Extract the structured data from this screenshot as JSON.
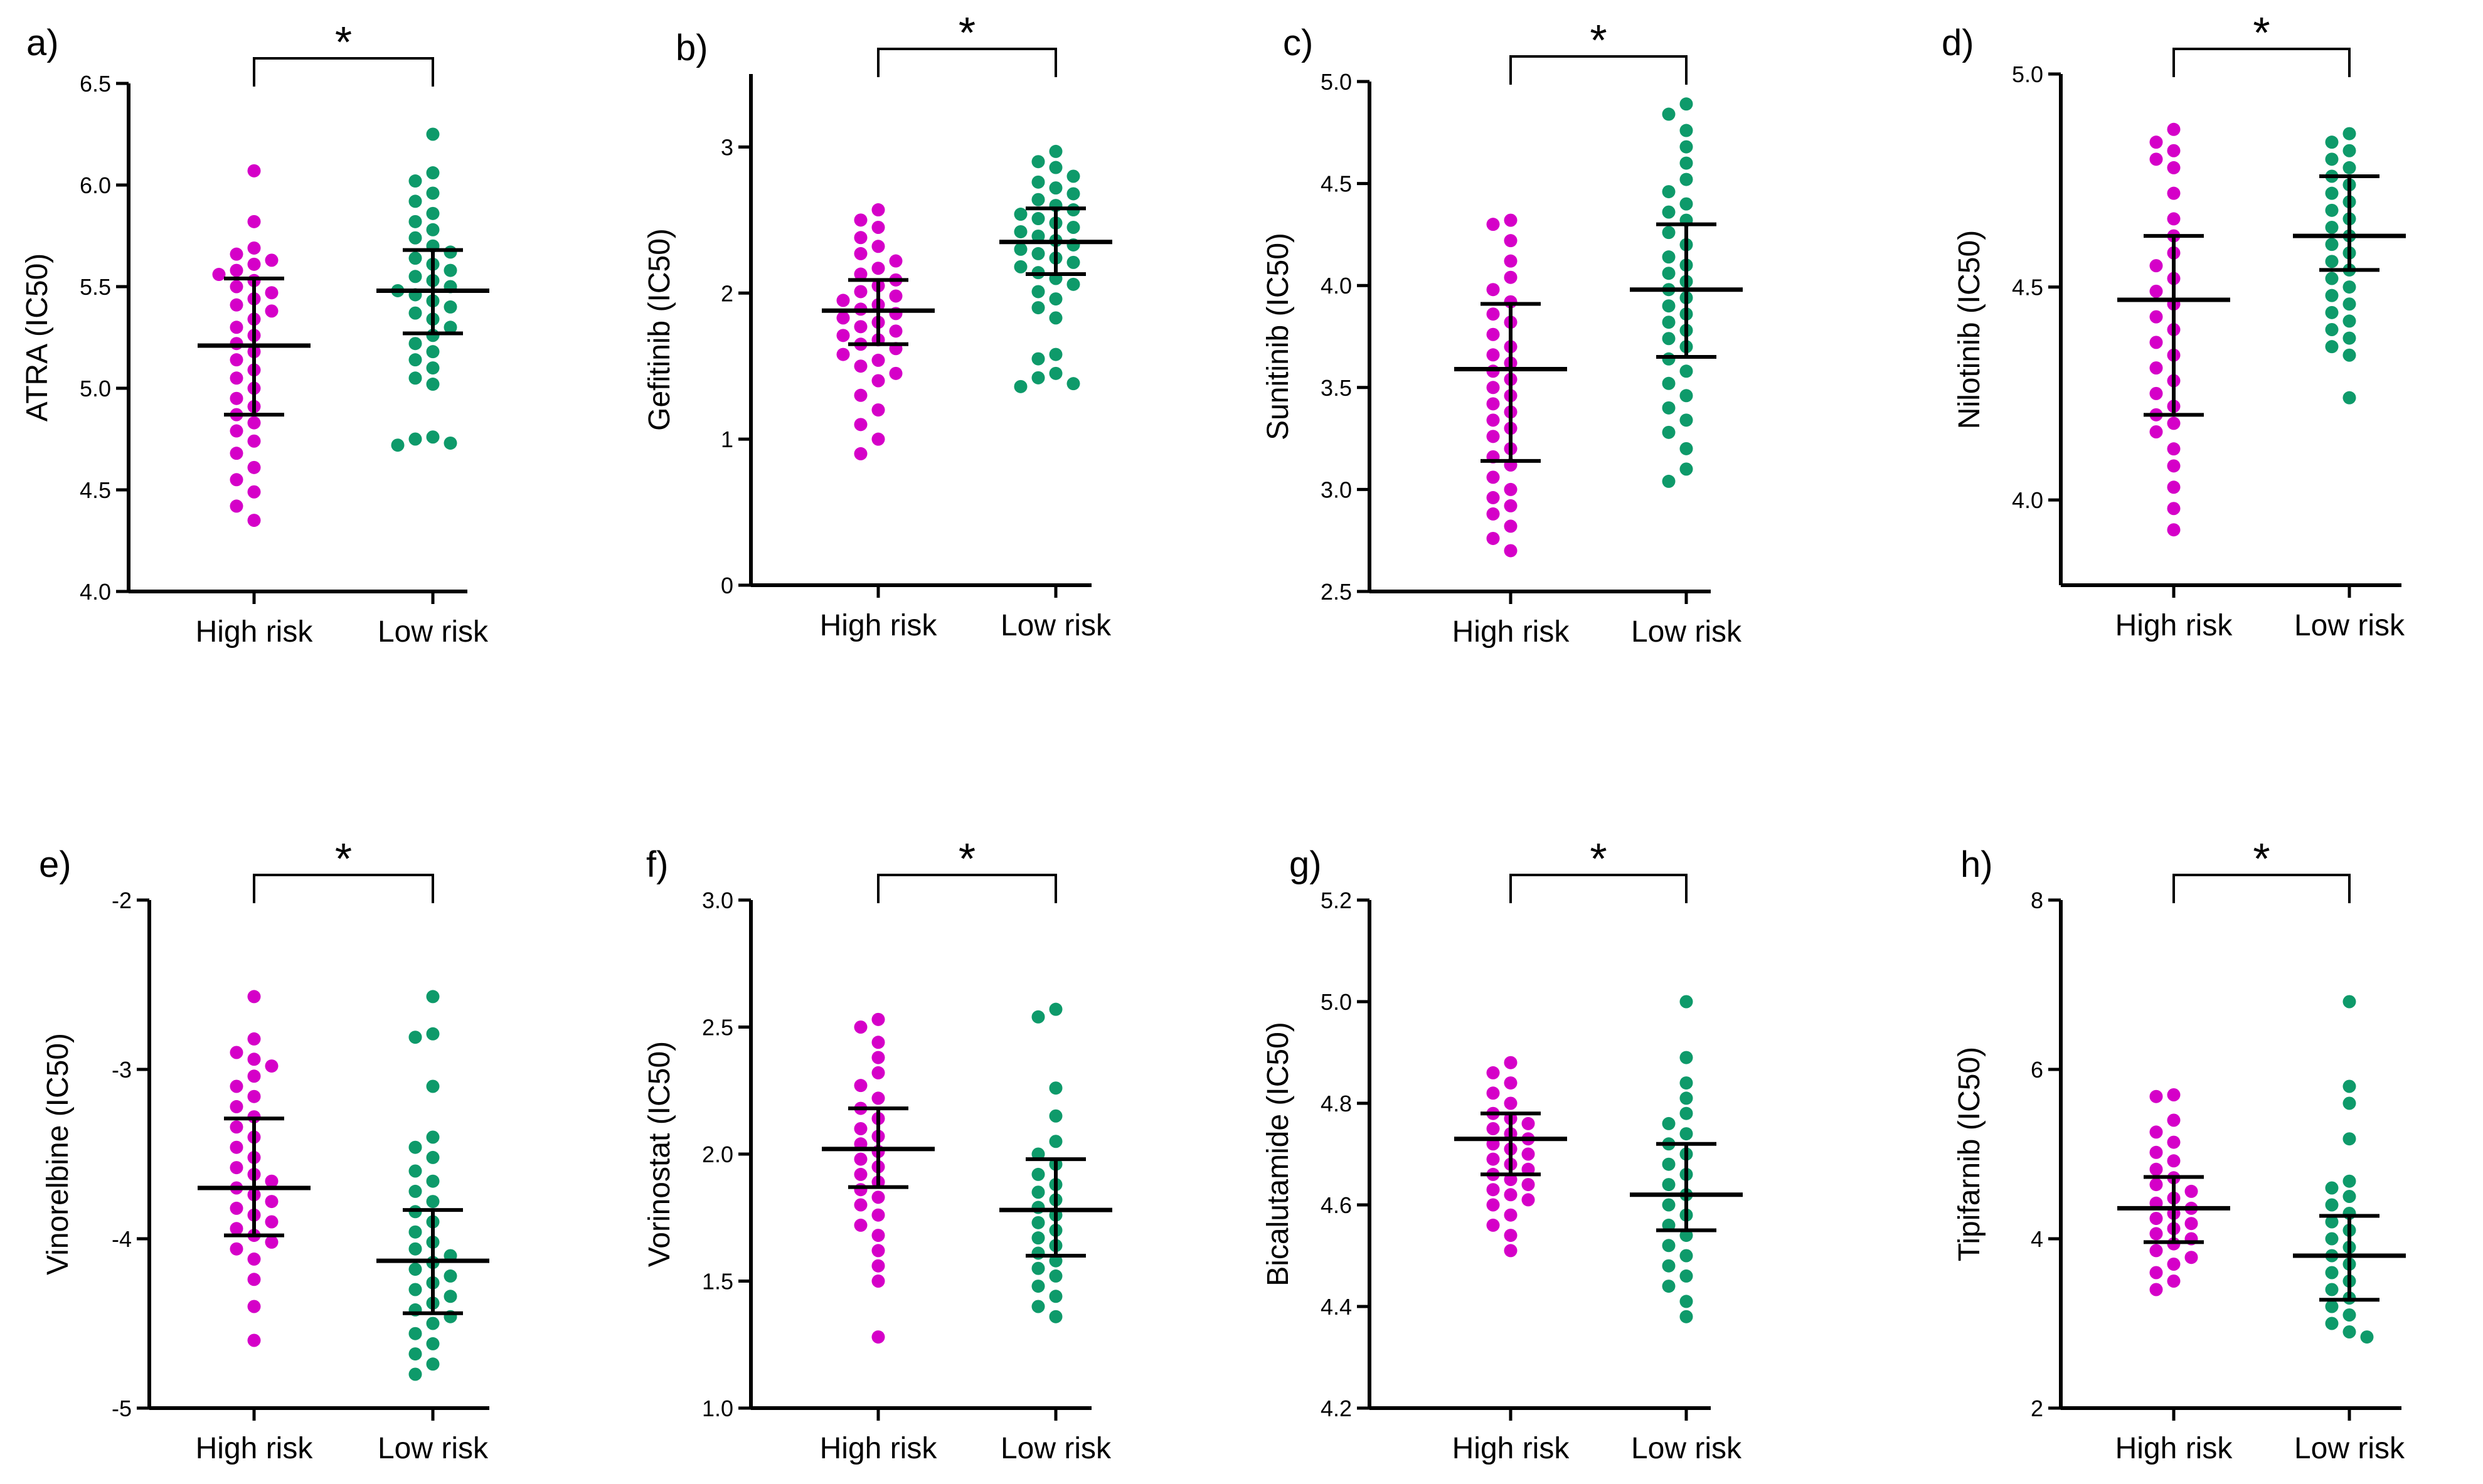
{
  "colors": {
    "high": "#d500c8",
    "low": "#0e9a6a",
    "axis": "#000000"
  },
  "chart_data": [
    {
      "type": "scatter",
      "panel": "a)",
      "ylabel": "ATRA (IC50)",
      "ylim": [
        4.0,
        6.5
      ],
      "yticks": [
        "4.0",
        "4.5",
        "5.0",
        "5.5",
        "6.0",
        "6.5"
      ],
      "categories": [
        "High risk",
        "Low risk"
      ],
      "significance": "*",
      "series": [
        {
          "name": "High risk",
          "mean": 5.21,
          "sd_low": 4.87,
          "sd_high": 5.54,
          "values": [
            6.07,
            5.82,
            5.69,
            5.66,
            5.63,
            5.61,
            5.58,
            5.56,
            5.53,
            5.5,
            5.47,
            5.44,
            5.41,
            5.38,
            5.34,
            5.3,
            5.26,
            5.22,
            5.18,
            5.14,
            5.09,
            5.05,
            5.0,
            4.95,
            4.91,
            4.87,
            4.83,
            4.79,
            4.74,
            4.68,
            4.61,
            4.55,
            4.49,
            4.42,
            4.35
          ]
        },
        {
          "name": "Low risk",
          "mean": 5.48,
          "sd_low": 5.27,
          "sd_high": 5.68,
          "values": [
            6.25,
            6.06,
            6.02,
            5.96,
            5.92,
            5.86,
            5.82,
            5.78,
            5.74,
            5.7,
            5.67,
            5.64,
            5.61,
            5.58,
            5.55,
            5.53,
            5.5,
            5.48,
            5.46,
            5.43,
            5.4,
            5.37,
            5.34,
            5.3,
            5.26,
            5.22,
            5.18,
            5.14,
            5.1,
            5.05,
            5.02,
            4.76,
            4.75,
            4.73,
            4.72
          ]
        }
      ]
    },
    {
      "type": "scatter",
      "panel": "b)",
      "ylabel": "Gefitinib  (IC50)",
      "ylim": [
        0,
        3.5
      ],
      "yticks": [
        "0",
        "1",
        "2",
        "3"
      ],
      "categories": [
        "High risk",
        "Low risk"
      ],
      "significance": "*",
      "series": [
        {
          "name": "High risk",
          "mean": 1.88,
          "sd_low": 1.65,
          "sd_high": 2.09,
          "values": [
            2.57,
            2.5,
            2.45,
            2.38,
            2.32,
            2.27,
            2.22,
            2.17,
            2.13,
            2.09,
            2.05,
            2.01,
            1.98,
            1.95,
            1.92,
            1.89,
            1.86,
            1.83,
            1.8,
            1.77,
            1.74,
            1.71,
            1.68,
            1.65,
            1.62,
            1.58,
            1.54,
            1.5,
            1.45,
            1.4,
            1.3,
            1.2,
            1.1,
            1.0,
            0.9
          ]
        },
        {
          "name": "Low risk",
          "mean": 2.35,
          "sd_low": 2.13,
          "sd_high": 2.58,
          "values": [
            2.97,
            2.9,
            2.86,
            2.8,
            2.76,
            2.72,
            2.68,
            2.64,
            2.6,
            2.57,
            2.54,
            2.51,
            2.48,
            2.45,
            2.42,
            2.39,
            2.36,
            2.33,
            2.3,
            2.27,
            2.24,
            2.21,
            2.18,
            2.14,
            2.1,
            2.06,
            2.01,
            1.96,
            1.9,
            1.83,
            1.58,
            1.55,
            1.45,
            1.42,
            1.38,
            1.36
          ]
        }
      ]
    },
    {
      "type": "scatter",
      "panel": "c)",
      "ylabel": "Sunitinib (IC50)",
      "ylim": [
        2.5,
        5.0
      ],
      "yticks": [
        "2.5",
        "3.0",
        "3.5",
        "4.0",
        "4.5",
        "5.0"
      ],
      "categories": [
        "High risk",
        "Low risk"
      ],
      "significance": "*",
      "series": [
        {
          "name": "High risk",
          "mean": 3.59,
          "sd_low": 3.14,
          "sd_high": 3.91,
          "values": [
            4.32,
            4.3,
            4.22,
            4.12,
            4.04,
            3.98,
            3.92,
            3.86,
            3.82,
            3.76,
            3.7,
            3.66,
            3.62,
            3.58,
            3.54,
            3.5,
            3.46,
            3.42,
            3.38,
            3.34,
            3.3,
            3.26,
            3.2,
            3.16,
            3.12,
            3.06,
            3.0,
            2.96,
            2.92,
            2.88,
            2.82,
            2.76,
            2.7
          ]
        },
        {
          "name": "Low risk",
          "mean": 3.98,
          "sd_low": 3.65,
          "sd_high": 4.3,
          "values": [
            4.89,
            4.84,
            4.76,
            4.68,
            4.6,
            4.52,
            4.46,
            4.4,
            4.36,
            4.32,
            4.26,
            4.2,
            4.14,
            4.1,
            4.06,
            4.02,
            3.98,
            3.94,
            3.9,
            3.86,
            3.82,
            3.78,
            3.74,
            3.7,
            3.64,
            3.58,
            3.52,
            3.46,
            3.4,
            3.34,
            3.28,
            3.2,
            3.1,
            3.04
          ]
        }
      ]
    },
    {
      "type": "scatter",
      "panel": "d)",
      "ylabel": "Nilotinib (IC50)",
      "ylim": [
        3.8,
        5.0
      ],
      "yticks": [
        "4.0",
        "4.5",
        "5.0"
      ],
      "categories": [
        "High risk",
        "Low risk"
      ],
      "significance": "*",
      "series": [
        {
          "name": "High risk",
          "mean": 4.47,
          "sd_low": 4.2,
          "sd_high": 4.62,
          "values": [
            4.87,
            4.84,
            4.82,
            4.8,
            4.78,
            4.72,
            4.66,
            4.62,
            4.58,
            4.55,
            4.52,
            4.49,
            4.46,
            4.43,
            4.4,
            4.37,
            4.34,
            4.31,
            4.28,
            4.25,
            4.22,
            4.2,
            4.18,
            4.16,
            4.12,
            4.08,
            4.03,
            3.98,
            3.93
          ]
        },
        {
          "name": "Low risk",
          "mean": 4.62,
          "sd_low": 4.54,
          "sd_high": 4.76,
          "values": [
            4.86,
            4.84,
            4.82,
            4.8,
            4.78,
            4.76,
            4.74,
            4.72,
            4.7,
            4.68,
            4.66,
            4.64,
            4.62,
            4.6,
            4.58,
            4.56,
            4.54,
            4.52,
            4.5,
            4.48,
            4.46,
            4.44,
            4.42,
            4.4,
            4.38,
            4.36,
            4.34,
            4.24
          ]
        }
      ]
    },
    {
      "type": "scatter",
      "panel": "e)",
      "ylabel": "Vinorelbine (IC50)",
      "ylim": [
        -5,
        -2
      ],
      "yticks": [
        "-5",
        "-4",
        "-3",
        "-2"
      ],
      "categories": [
        "High risk",
        "Low risk"
      ],
      "significance": "*",
      "series": [
        {
          "name": "High risk",
          "mean": -3.7,
          "sd_low": -3.98,
          "sd_high": -3.29,
          "values": [
            -2.57,
            -2.82,
            -2.9,
            -2.94,
            -2.98,
            -3.04,
            -3.1,
            -3.16,
            -3.22,
            -3.28,
            -3.34,
            -3.4,
            -3.46,
            -3.52,
            -3.58,
            -3.62,
            -3.66,
            -3.7,
            -3.74,
            -3.78,
            -3.82,
            -3.86,
            -3.9,
            -3.94,
            -3.98,
            -4.02,
            -4.06,
            -4.12,
            -4.24,
            -4.4,
            -4.6
          ]
        },
        {
          "name": "Low risk",
          "mean": -4.13,
          "sd_low": -4.44,
          "sd_high": -3.83,
          "values": [
            -2.57,
            -2.79,
            -2.81,
            -3.1,
            -3.4,
            -3.46,
            -3.52,
            -3.6,
            -3.66,
            -3.72,
            -3.78,
            -3.84,
            -3.9,
            -3.96,
            -4.02,
            -4.06,
            -4.1,
            -4.14,
            -4.18,
            -4.22,
            -4.26,
            -4.3,
            -4.34,
            -4.38,
            -4.42,
            -4.46,
            -4.5,
            -4.56,
            -4.62,
            -4.68,
            -4.74,
            -4.8
          ]
        }
      ]
    },
    {
      "type": "scatter",
      "panel": "f)",
      "ylabel": "Vorinostat (IC50)",
      "ylim": [
        1.0,
        3.0
      ],
      "yticks": [
        "1.0",
        "1.5",
        "2.0",
        "2.5",
        "3.0"
      ],
      "categories": [
        "High risk",
        "Low risk"
      ],
      "significance": "*",
      "series": [
        {
          "name": "High risk",
          "mean": 2.02,
          "sd_low": 1.87,
          "sd_high": 2.18,
          "values": [
            2.53,
            2.5,
            2.44,
            2.38,
            2.32,
            2.27,
            2.22,
            2.18,
            2.14,
            2.1,
            2.07,
            2.04,
            2.01,
            1.98,
            1.95,
            1.92,
            1.89,
            1.86,
            1.83,
            1.8,
            1.76,
            1.72,
            1.68,
            1.62,
            1.56,
            1.5,
            1.28
          ]
        },
        {
          "name": "Low risk",
          "mean": 1.78,
          "sd_low": 1.6,
          "sd_high": 1.98,
          "values": [
            2.57,
            2.54,
            2.26,
            2.15,
            2.05,
            2.0,
            1.96,
            1.92,
            1.88,
            1.85,
            1.82,
            1.79,
            1.76,
            1.73,
            1.7,
            1.67,
            1.64,
            1.61,
            1.58,
            1.55,
            1.52,
            1.48,
            1.44,
            1.4,
            1.36
          ]
        }
      ]
    },
    {
      "type": "scatter",
      "panel": "g)",
      "ylabel": "Bicalutamide  (IC50)",
      "ylim": [
        4.2,
        5.2
      ],
      "yticks": [
        "4.2",
        "4.4",
        "4.6",
        "4.8",
        "5.0",
        "5.2"
      ],
      "categories": [
        "High risk",
        "Low risk"
      ],
      "significance": "*",
      "series": [
        {
          "name": "High risk",
          "mean": 4.73,
          "sd_low": 4.66,
          "sd_high": 4.78,
          "values": [
            4.88,
            4.86,
            4.84,
            4.82,
            4.8,
            4.78,
            4.77,
            4.76,
            4.75,
            4.74,
            4.73,
            4.72,
            4.71,
            4.7,
            4.69,
            4.68,
            4.67,
            4.66,
            4.65,
            4.64,
            4.63,
            4.62,
            4.61,
            4.6,
            4.58,
            4.56,
            4.54,
            4.51
          ]
        },
        {
          "name": "Low risk",
          "mean": 4.62,
          "sd_low": 4.55,
          "sd_high": 4.72,
          "values": [
            5.0,
            4.89,
            4.84,
            4.81,
            4.78,
            4.76,
            4.74,
            4.72,
            4.7,
            4.68,
            4.66,
            4.64,
            4.62,
            4.6,
            4.58,
            4.56,
            4.54,
            4.52,
            4.5,
            4.48,
            4.46,
            4.44,
            4.41,
            4.38
          ]
        }
      ]
    },
    {
      "type": "scatter",
      "panel": "h)",
      "ylabel": "Tipifarnib (IC50)",
      "ylim": [
        2,
        8
      ],
      "yticks": [
        "2",
        "4",
        "6",
        "8"
      ],
      "categories": [
        "High risk",
        "Low risk"
      ],
      "significance": "*",
      "series": [
        {
          "name": "High risk",
          "mean": 4.36,
          "sd_low": 3.96,
          "sd_high": 4.73,
          "values": [
            5.7,
            5.68,
            5.4,
            5.26,
            5.14,
            5.02,
            4.92,
            4.82,
            4.72,
            4.64,
            4.56,
            4.48,
            4.42,
            4.36,
            4.3,
            4.24,
            4.18,
            4.12,
            4.06,
            4.0,
            3.94,
            3.86,
            3.78,
            3.7,
            3.6,
            3.5,
            3.4
          ]
        },
        {
          "name": "Low risk",
          "mean": 3.8,
          "sd_low": 3.28,
          "sd_high": 4.27,
          "values": [
            6.8,
            5.8,
            5.6,
            5.18,
            4.68,
            4.6,
            4.5,
            4.4,
            4.3,
            4.2,
            4.1,
            4.0,
            3.9,
            3.8,
            3.7,
            3.6,
            3.5,
            3.4,
            3.3,
            3.2,
            3.1,
            3.0,
            2.9,
            2.84
          ]
        }
      ]
    }
  ]
}
